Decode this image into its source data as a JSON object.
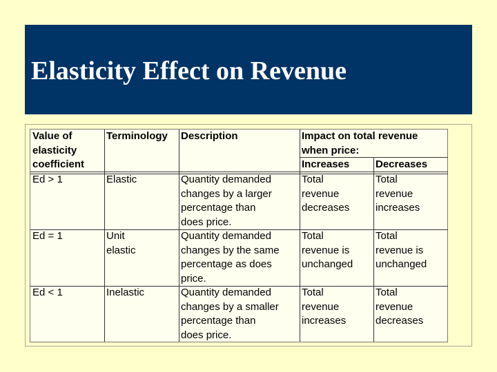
{
  "slide": {
    "title": "Elasticity Effect on Revenue",
    "colors": {
      "background": "#ffffcc",
      "title_bar": "#003366",
      "title_text": "#ffffff"
    }
  },
  "table": {
    "headers": {
      "value": "Value of\nelasticity\ncoefficient",
      "terminology": "Terminology",
      "description": "Description",
      "impact": "Impact on total revenue\nwhen price:",
      "increases": "Increases",
      "decreases": "Decreases"
    },
    "rows": [
      {
        "value": "Ed > 1",
        "terminology": "Elastic",
        "description": "Quantity demanded\nchanges by a larger\npercentage than\ndoes price.",
        "increases": "Total\nrevenue\ndecreases",
        "decreases": "Total\nrevenue\nincreases"
      },
      {
        "value": "Ed = 1",
        "terminology": "Unit\nelastic",
        "description": "Quantity demanded\nchanges by the same\npercentage as does\nprice.",
        "increases": "Total\nrevenue is\nunchanged",
        "decreases": "Total\nrevenue is\nunchanged"
      },
      {
        "value": "Ed < 1",
        "terminology": "Inelastic",
        "description": "Quantity demanded\nchanges by a smaller\npercentage than\ndoes price.",
        "increases": "Total\nrevenue\nincreases",
        "decreases": "Total\nrevenue\ndecreases"
      }
    ]
  }
}
